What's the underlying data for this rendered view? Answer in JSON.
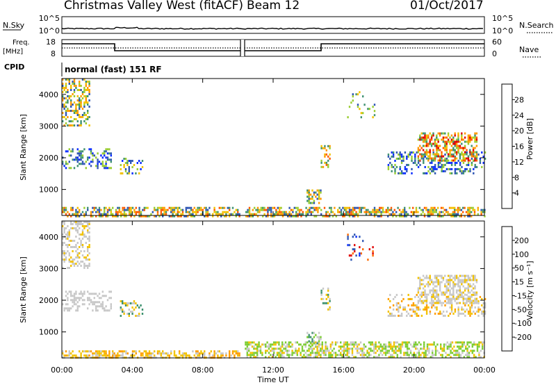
{
  "header": {
    "title": "Christmas Valley West (fitACF)",
    "beam": "Beam 12",
    "date": "01/Oct/2017"
  },
  "summary": {
    "nsky_label": "N.Sky",
    "nsky_ticks": [
      "10^5",
      "10^0"
    ],
    "nsearch_label": "N.Search",
    "nsearch_ticks": [
      "10^5",
      "10^0"
    ],
    "freq_label": "Freq.",
    "freq_unit": "[MHz]",
    "freq_ticks": [
      "18",
      "8"
    ],
    "nave_label": "Nave",
    "nave_ticks": [
      "60",
      "0"
    ],
    "cpid_label": "CPID",
    "cpid_text": "normal (fast) 151 RF"
  },
  "chart_data": [
    {
      "type": "heatmap",
      "name": "power",
      "ylabel": "Slant Range [km]",
      "ylim": [
        180,
        4500
      ],
      "yticks": [
        "1000",
        "2000",
        "3000",
        "4000"
      ],
      "xlim_hours": [
        0,
        24
      ],
      "colorbar_label": "Power [dB]",
      "colorbar_ticks": [
        "4",
        "8",
        "12",
        "16",
        "20",
        "24",
        "28"
      ],
      "colors": [
        "#0a2dff",
        "#2f56b4",
        "#3f9270",
        "#9acd32",
        "#f2c200",
        "#ff9a00",
        "#ff5a00",
        "#e00000"
      ],
      "regions": [
        {
          "t0": 0.0,
          "t1": 24.0,
          "r0": 180,
          "r1": 450,
          "density": 0.55,
          "palette": [
            1,
            2,
            3,
            4,
            5,
            6
          ]
        },
        {
          "t0": 0.0,
          "t1": 1.6,
          "r0": 3000,
          "r1": 4500,
          "density": 0.45,
          "palette": [
            1,
            2,
            3,
            4,
            5
          ]
        },
        {
          "t0": 0.0,
          "t1": 2.8,
          "r0": 1700,
          "r1": 2300,
          "density": 0.35,
          "palette": [
            0,
            1,
            2,
            3
          ]
        },
        {
          "t0": 3.3,
          "t1": 4.6,
          "r0": 1500,
          "r1": 2000,
          "density": 0.3,
          "palette": [
            0,
            1,
            2,
            3,
            4
          ]
        },
        {
          "t0": 13.9,
          "t1": 14.7,
          "r0": 600,
          "r1": 1000,
          "density": 0.55,
          "palette": [
            1,
            2,
            3,
            4,
            5
          ]
        },
        {
          "t0": 14.7,
          "t1": 15.2,
          "r0": 1700,
          "r1": 2400,
          "density": 0.4,
          "palette": [
            2,
            3,
            4,
            5,
            6
          ]
        },
        {
          "t0": 16.2,
          "t1": 17.8,
          "r0": 3300,
          "r1": 4100,
          "density": 0.12,
          "palette": [
            1,
            2,
            3,
            4
          ]
        },
        {
          "t0": 18.5,
          "t1": 24.0,
          "r0": 1500,
          "r1": 2200,
          "density": 0.3,
          "palette": [
            0,
            1,
            2,
            3
          ]
        },
        {
          "t0": 20.2,
          "t1": 23.6,
          "r0": 1900,
          "r1": 2800,
          "density": 0.55,
          "palette": [
            2,
            3,
            4,
            5,
            6,
            7
          ]
        }
      ]
    },
    {
      "type": "heatmap",
      "name": "velocity",
      "ylabel": "Slant Range [km]",
      "ylim": [
        180,
        4500
      ],
      "yticks": [
        "1000",
        "2000",
        "3000",
        "4000"
      ],
      "xlim_hours": [
        0,
        24
      ],
      "xticks": [
        "00:00",
        "04:00",
        "08:00",
        "12:00",
        "16:00",
        "20:00",
        "00:00"
      ],
      "xlabel": "Time UT",
      "colorbar_label": "Velocity [m s⁻¹]",
      "colorbar_ticks": [
        "-200",
        "-100",
        "-50",
        "-15",
        "15",
        "50",
        "100",
        "200"
      ],
      "colors": [
        "#e00000",
        "#ff6a00",
        "#ff9d00",
        "#f2c200",
        "#c8c8c8",
        "#7ccd32",
        "#3f9270",
        "#2f56b4",
        "#0a2dff"
      ],
      "regions": [
        {
          "t0": 0.0,
          "t1": 10.2,
          "r0": 180,
          "r1": 420,
          "density": 0.55,
          "palette": [
            2,
            3,
            3,
            4
          ]
        },
        {
          "t0": 10.2,
          "t1": 24.0,
          "r0": 180,
          "r1": 700,
          "density": 0.55,
          "palette": [
            3,
            4,
            5,
            5
          ]
        },
        {
          "t0": 0.0,
          "t1": 1.6,
          "r0": 3000,
          "r1": 4500,
          "density": 0.45,
          "palette": [
            4,
            4,
            4,
            3
          ]
        },
        {
          "t0": 0.0,
          "t1": 2.8,
          "r0": 1700,
          "r1": 2300,
          "density": 0.35,
          "palette": [
            4,
            4,
            4
          ]
        },
        {
          "t0": 3.3,
          "t1": 4.6,
          "r0": 1500,
          "r1": 2000,
          "density": 0.3,
          "palette": [
            3,
            4,
            6
          ]
        },
        {
          "t0": 13.9,
          "t1": 14.7,
          "r0": 600,
          "r1": 1000,
          "density": 0.5,
          "palette": [
            4,
            5,
            6
          ]
        },
        {
          "t0": 14.7,
          "t1": 15.2,
          "r0": 1700,
          "r1": 2400,
          "density": 0.35,
          "palette": [
            4,
            6,
            3
          ]
        },
        {
          "t0": 16.2,
          "t1": 17.8,
          "r0": 3300,
          "r1": 4100,
          "density": 0.12,
          "palette": [
            7,
            8,
            0,
            1
          ]
        },
        {
          "t0": 18.5,
          "t1": 24.0,
          "r0": 1500,
          "r1": 2200,
          "density": 0.3,
          "palette": [
            4,
            4,
            3,
            2
          ]
        },
        {
          "t0": 20.2,
          "t1": 23.6,
          "r0": 1900,
          "r1": 2800,
          "density": 0.55,
          "palette": [
            4,
            4,
            4,
            3
          ]
        }
      ]
    }
  ]
}
